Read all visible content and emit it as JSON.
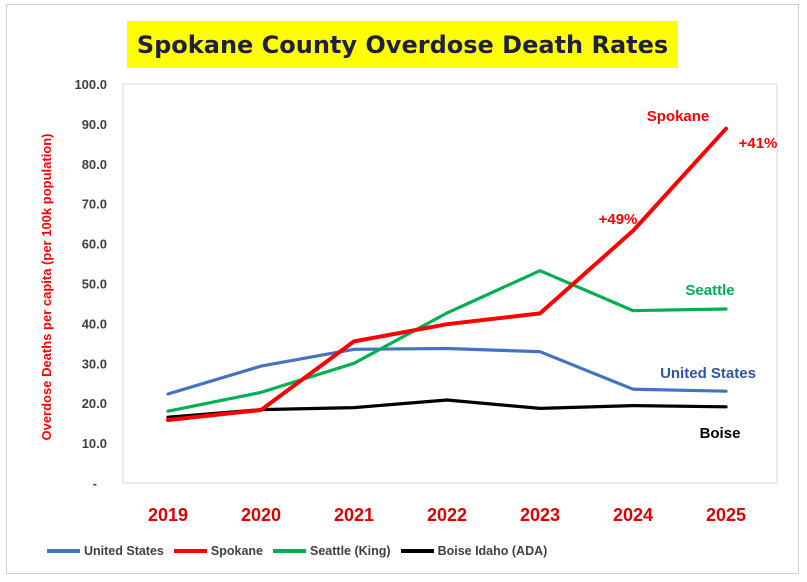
{
  "chart_data": {
    "type": "line",
    "title": "Spokane County Overdose Death Rates",
    "ylabel": "Overdose Deaths per capita (per 100k population)",
    "xlabel": "",
    "categories": [
      "2019",
      "2020",
      "2021",
      "2022",
      "2023",
      "2024",
      "2025"
    ],
    "ylim": [
      0,
      100
    ],
    "y_ticks": [
      "-",
      "10.0",
      "20.0",
      "30.0",
      "40.0",
      "50.0",
      "60.0",
      "70.0",
      "80.0",
      "90.0",
      "100.0"
    ],
    "grid": false,
    "series": [
      {
        "name": "United States",
        "color": "#4472c4",
        "values": [
          22.3,
          29.3,
          33.5,
          33.7,
          32.9,
          23.5,
          23.0
        ]
      },
      {
        "name": "Spokane",
        "color": "#ff0000",
        "values": [
          15.8,
          18.3,
          35.5,
          39.8,
          42.5,
          63.2,
          88.8
        ]
      },
      {
        "name": "Seattle (King)",
        "color": "#00b050",
        "values": [
          18.0,
          22.7,
          30.0,
          42.6,
          53.2,
          43.2,
          43.6
        ]
      },
      {
        "name": "Boise Idaho (ADA)",
        "color": "#000000",
        "values": [
          16.5,
          18.4,
          18.9,
          20.8,
          18.7,
          19.4,
          19.1
        ]
      }
    ],
    "annotations": [
      {
        "text": "Spokane",
        "color": "#ff0000"
      },
      {
        "text": "+41%",
        "color": "#ff0000"
      },
      {
        "text": "+49%",
        "color": "#ff0000"
      },
      {
        "text": "Seattle",
        "color": "#00b050"
      },
      {
        "text": "United States",
        "color": "#2f55a4"
      },
      {
        "text": "Boise",
        "color": "#000000"
      }
    ],
    "legend": "bottom"
  }
}
